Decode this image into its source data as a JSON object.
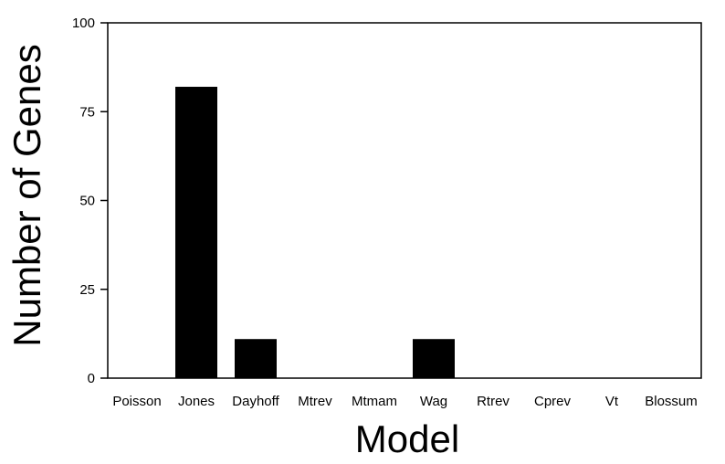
{
  "chart_data": {
    "type": "bar",
    "categories": [
      "Poisson",
      "Jones",
      "Dayhoff",
      "Mtrev",
      "Mtmam",
      "Wag",
      "Rtrev",
      "Cprev",
      "Vt",
      "Blossum"
    ],
    "values": [
      0,
      82,
      11,
      0,
      0,
      11,
      0,
      0,
      0,
      0
    ],
    "xlabel": "Model",
    "ylabel": "Number of Genes",
    "ylim": [
      0,
      100
    ],
    "yticks": [
      0,
      25,
      50,
      75,
      100
    ],
    "grid": false,
    "bar_color": "#000000"
  }
}
